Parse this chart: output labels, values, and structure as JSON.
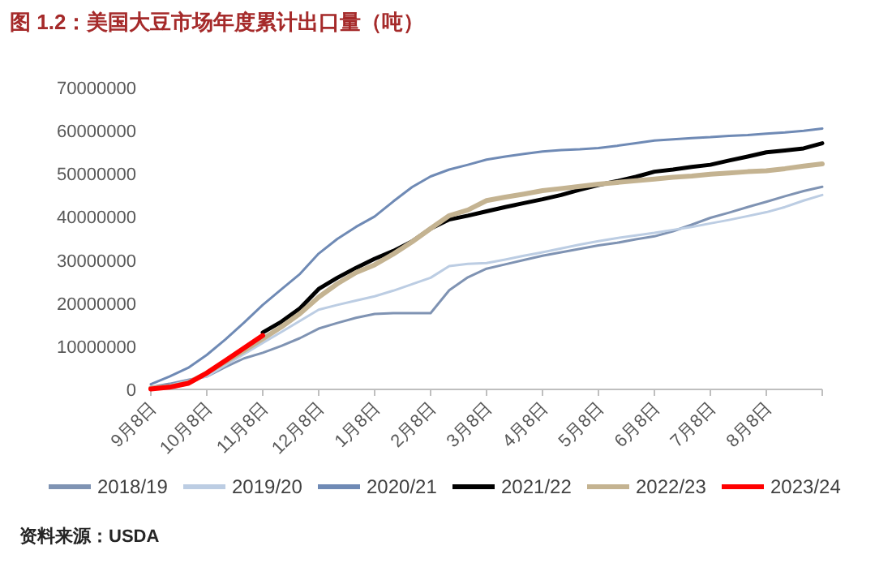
{
  "chart_data": {
    "type": "line",
    "title": "图 1.2：美国大豆市场年度累计出口量（吨）",
    "annotations": [
      "资料来源：USDA"
    ],
    "categories": [
      "9月8日",
      null,
      null,
      "10月8日",
      null,
      null,
      "11月8日",
      null,
      null,
      "12月8日",
      null,
      null,
      "1月8日",
      null,
      null,
      "2月8日",
      null,
      null,
      "3月8日",
      null,
      null,
      "4月8日",
      null,
      null,
      "5月8日",
      null,
      null,
      "6月8日",
      null,
      null,
      "7月8日",
      null,
      null,
      "8月8日",
      null,
      null,
      null
    ],
    "ylim": [
      0,
      70000000
    ],
    "yticks": [
      0,
      10000000,
      20000000,
      30000000,
      40000000,
      50000000,
      60000000,
      70000000
    ],
    "legend": "bottom",
    "series": [
      {
        "name": "2018/19",
        "color": "#7f93b3",
        "values": [
          500000,
          1300000,
          2200000,
          3000000,
          5200000,
          7200000,
          8500000,
          10100000,
          11900000,
          14100000,
          15400000,
          16600000,
          17500000,
          17700000,
          17700000,
          17700000,
          23000000,
          26000000,
          28000000,
          29000000,
          30000000,
          31000000,
          31800000,
          32600000,
          33400000,
          34000000,
          34800000,
          35500000,
          36700000,
          38200000,
          39800000,
          41000000,
          42300000,
          43500000,
          44800000,
          46000000,
          47000000
        ]
      },
      {
        "name": "2019/20",
        "color": "#bccde3",
        "values": [
          200000,
          900000,
          2000000,
          3000000,
          5600000,
          8200000,
          10800000,
          13300000,
          15900000,
          18500000,
          19600000,
          20600000,
          21600000,
          22900000,
          24400000,
          25900000,
          28600000,
          29100000,
          29300000,
          30100000,
          31000000,
          31800000,
          32700000,
          33600000,
          34400000,
          35100000,
          35700000,
          36300000,
          37000000,
          37700000,
          38500000,
          39300000,
          40200000,
          41100000,
          42300000,
          43800000,
          45100000
        ]
      },
      {
        "name": "2020/21",
        "color": "#6f8ab5",
        "values": [
          1200000,
          3000000,
          5000000,
          8000000,
          11600000,
          15500000,
          19600000,
          23200000,
          26800000,
          31500000,
          34900000,
          37700000,
          40100000,
          43600000,
          46900000,
          49400000,
          51000000,
          52100000,
          53300000,
          54000000,
          54600000,
          55200000,
          55500000,
          55700000,
          56000000,
          56500000,
          57100000,
          57700000,
          58000000,
          58300000,
          58500000,
          58800000,
          59000000,
          59300000,
          59600000,
          60000000,
          60500000
        ]
      },
      {
        "name": "2021/22",
        "color": "#000000",
        "values": [
          null,
          null,
          null,
          null,
          null,
          null,
          13200000,
          15700000,
          18800000,
          23300000,
          25900000,
          28200000,
          30300000,
          32100000,
          34300000,
          37300000,
          39400000,
          40300000,
          41300000,
          42300000,
          43200000,
          44100000,
          45100000,
          46300000,
          47400000,
          48300000,
          49300000,
          50500000,
          51000000,
          51600000,
          52100000,
          53100000,
          54000000,
          55000000,
          55400000,
          55900000,
          57100000
        ]
      },
      {
        "name": "2022/23",
        "color": "#c4b391",
        "values": [
          300000,
          600000,
          1500000,
          3800000,
          6400000,
          9000000,
          11700000,
          14500000,
          17600000,
          21400000,
          24500000,
          27100000,
          28900000,
          31400000,
          34200000,
          37300000,
          40300000,
          41600000,
          43800000,
          44600000,
          45300000,
          46100000,
          46600000,
          47100000,
          47600000,
          48000000,
          48400000,
          48800000,
          49200000,
          49500000,
          49900000,
          50200000,
          50500000,
          50700000,
          51200000,
          51800000,
          52300000
        ]
      },
      {
        "name": "2023/24",
        "color": "#ff0000",
        "values": [
          100000,
          500000,
          1400000,
          3800000,
          6700000,
          9600000,
          12500000,
          null,
          null,
          null,
          null,
          null,
          null,
          null,
          null,
          null,
          null,
          null,
          null,
          null,
          null,
          null,
          null,
          null,
          null,
          null,
          null,
          null,
          null,
          null,
          null,
          null,
          null,
          null,
          null,
          null,
          null
        ]
      }
    ]
  }
}
